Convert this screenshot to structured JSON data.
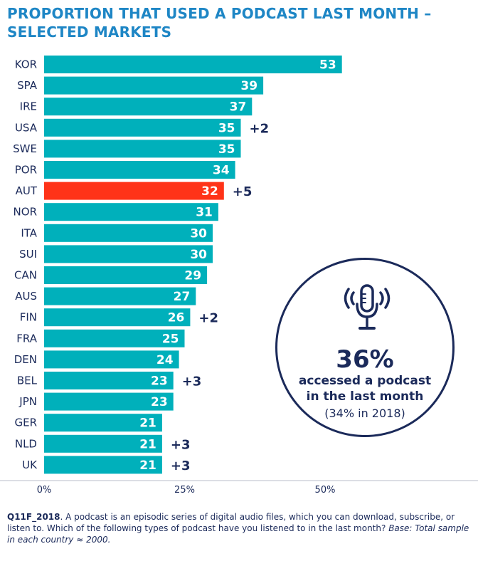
{
  "title": {
    "line1": "PROPORTION THAT USED A PODCAST LAST MONTH –",
    "line2": "SELECTED MARKETS"
  },
  "colors": {
    "bar": "#00b0bb",
    "highlight": "#ff3318",
    "text": "#1b2a5a",
    "title": "#1e86c5"
  },
  "chart_data": {
    "type": "bar",
    "orientation": "horizontal",
    "categories": [
      "KOR",
      "SPA",
      "IRE",
      "USA",
      "SWE",
      "POR",
      "AUT",
      "NOR",
      "ITA",
      "SUI",
      "CAN",
      "AUS",
      "FIN",
      "FRA",
      "DEN",
      "BEL",
      "JPN",
      "GER",
      "NLD",
      "UK"
    ],
    "values": [
      53,
      39,
      37,
      35,
      35,
      34,
      32,
      31,
      30,
      30,
      29,
      27,
      26,
      25,
      24,
      23,
      23,
      21,
      21,
      21
    ],
    "changes": [
      "",
      "",
      "",
      "+2",
      "",
      "",
      "+5",
      "",
      "",
      "",
      "",
      "",
      "+2",
      "",
      "",
      "+3",
      "",
      "",
      "+3",
      "+3"
    ],
    "highlight_category": "AUT",
    "xlim": [
      0,
      75
    ],
    "xticks": [
      "0%",
      "25%",
      "50%"
    ],
    "xtick_values": [
      0,
      25,
      50
    ],
    "grid": false
  },
  "callout": {
    "icon": "microphone-icon",
    "value": "36%",
    "line1": "accessed a podcast",
    "line2": "in the last month",
    "line3": "(34% in 2018)"
  },
  "footnote": {
    "code": "Q11F_2018",
    "text": ". A podcast is an episodic series of digital audio files, which you can download, subscribe, or listen to. Which of the following types of podcast have you listened to in the last month? ",
    "base": "Base: Total sample in each country ≈ 2000."
  }
}
